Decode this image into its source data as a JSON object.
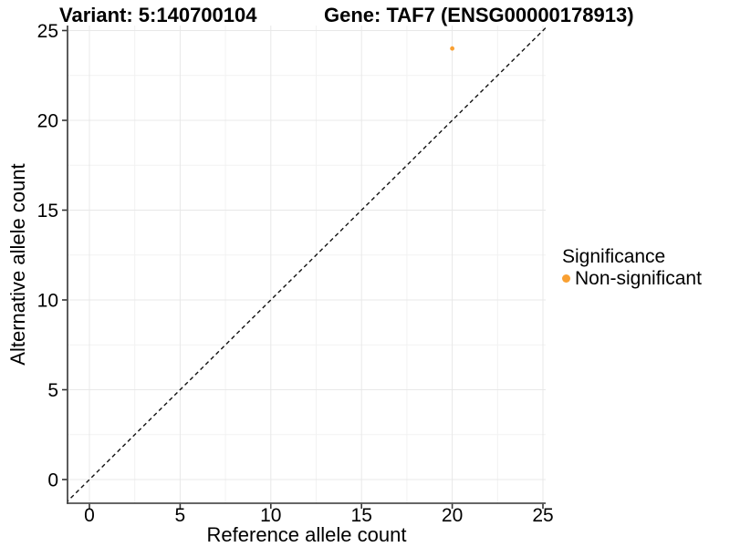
{
  "title": {
    "left": "Variant: 5:140700104",
    "right": "Gene: TAF7 (ENSG00000178913)"
  },
  "legend": {
    "title": "Significance",
    "items": [
      {
        "label": "Non-significant",
        "color": "#F9A032"
      }
    ]
  },
  "chart_data": {
    "type": "scatter",
    "title": "Variant: 5:140700104    Gene: TAF7 (ENSG00000178913)",
    "xlabel": "Reference allele count",
    "ylabel": "Alternative allele count",
    "x_ticks": [
      0,
      5,
      10,
      15,
      20,
      25
    ],
    "y_ticks": [
      0,
      5,
      10,
      15,
      20,
      25
    ],
    "xlim": [
      -1.2,
      25.2
    ],
    "ylim": [
      -1.3,
      25.5
    ],
    "grid": "major+minor",
    "legend_position": "right",
    "series": [
      {
        "name": "Non-significant",
        "color": "#F9A032",
        "points": [
          [
            20,
            24
          ]
        ]
      }
    ],
    "reference_line": {
      "type": "y=x",
      "style": "dashed",
      "color": "#111111"
    },
    "colors": {
      "grid_major": "#E8E8E8",
      "grid_minor": "#F2F2F2",
      "axis_line": "#333333",
      "background": "#FFFFFF"
    }
  }
}
